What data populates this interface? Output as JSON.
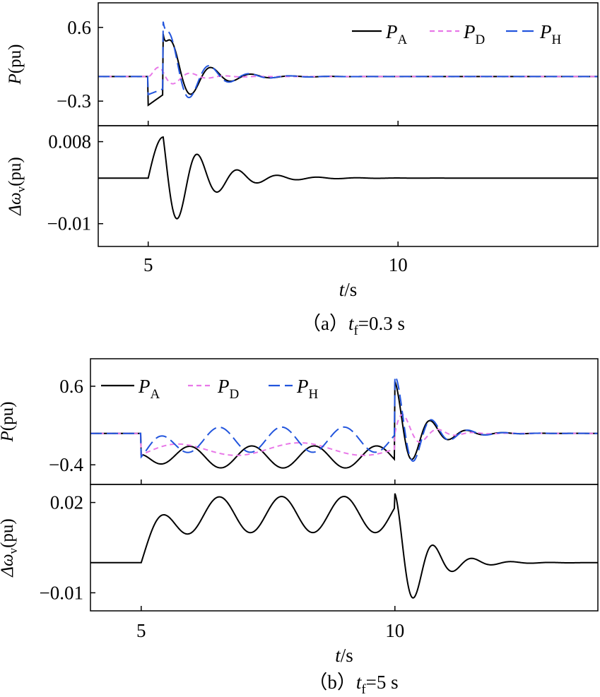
{
  "chart_data": [
    {
      "type": "line",
      "caption": {
        "prefix": "（a）",
        "var": "t",
        "sub": "f",
        "rest": "=0.3 s"
      },
      "xlabel": {
        "var": "t",
        "rest": "/s"
      },
      "xlim": [
        4,
        14
      ],
      "xticks": [
        5,
        10
      ],
      "panels": [
        {
          "ylabel": {
            "var": "P",
            "rest": "(pu)"
          },
          "ylim": [
            -0.6,
            0.9
          ],
          "yticks": [
            0.6,
            -0.3
          ],
          "legend": {
            "position": "top-right"
          },
          "series": [
            {
              "name": {
                "base": "P",
                "sub": "A"
              },
              "color": "#000000",
              "dash": "solid",
              "params": {
                "base": 0,
                "fault_start": 5.0,
                "fault_end": 5.3,
                "fault_from": -0.35,
                "fault_to": -0.22,
                "clear_jump": 0.74,
                "A": 0.55,
                "tau": 0.6,
                "freq": 1.25,
                "phase": 0.2
              }
            },
            {
              "name": {
                "base": "P",
                "sub": "D"
              },
              "color": "#e878e8",
              "dash": "short",
              "params": {
                "base": 0,
                "fault_start": 5.0,
                "fault_end": 5.3,
                "fault_from": 0,
                "fault_to": 0,
                "clear_jump": 0,
                "A": 0.27,
                "tau": 0.45,
                "freq": 1.45,
                "phase": 0.0
              }
            },
            {
              "name": {
                "base": "P",
                "sub": "H"
              },
              "color": "#2255dd",
              "dash": "long",
              "params": {
                "base": 0,
                "fault_start": 5.0,
                "fault_end": 5.3,
                "fault_from": -0.22,
                "fault_to": -0.15,
                "clear_jump": 0.82,
                "A": 0.62,
                "tau": 0.6,
                "freq": 1.25,
                "phase": 0.45
              }
            }
          ]
        },
        {
          "ylabel": {
            "var": "Δω",
            "sub": "v",
            "rest": "(pu)"
          },
          "ylim": [
            -0.015,
            0.0115
          ],
          "yticks": [
            0.008,
            -0.01
          ],
          "series": [
            {
              "name": null,
              "color": "#000000",
              "dash": "solid",
              "params": {
                "base": 0,
                "fault_start": 5.0,
                "fault_end": 5.3,
                "fault_from": 0,
                "fault_to": 0.009,
                "clear_jump": 0,
                "A": 0.0135,
                "tau": 0.75,
                "freq": 1.25,
                "phase": 0.55
              }
            }
          ]
        }
      ]
    },
    {
      "type": "line",
      "caption": {
        "prefix": "（b）",
        "var": "t",
        "sub": "f",
        "rest": "=5 s"
      },
      "xlabel": {
        "var": "t",
        "rest": "/s"
      },
      "xlim": [
        4,
        14
      ],
      "xticks": [
        5,
        10
      ],
      "panels": [
        {
          "ylabel": {
            "var": "P",
            "rest": "(pu)"
          },
          "ylim": [
            -0.65,
            0.95
          ],
          "yticks": [
            0.6,
            -0.4
          ],
          "legend": {
            "position": "top-left"
          },
          "series": [
            {
              "name": {
                "base": "P",
                "sub": "A"
              },
              "color": "#000000",
              "dash": "solid",
              "params": {
                "fault_start": 5.0,
                "fault_end": 10.0,
                "fault_osc": {
                  "start": -0.27,
                  "center": -0.3,
                  "A": 0.14,
                  "tau": 0.3,
                  "freq": 0.813,
                  "phase": 3.0
                },
                "post": {
                  "A": 0.66,
                  "tau": 0.5,
                  "freq": 1.4,
                  "phase": 1.57
                }
              }
            },
            {
              "name": {
                "base": "P",
                "sub": "D"
              },
              "color": "#e878e8",
              "dash": "short",
              "params": {
                "fault_start": 5.0,
                "fault_end": 10.0,
                "fault_osc": {
                  "start": -0.27,
                  "center": -0.2,
                  "A": 0.08,
                  "tau": 0.3,
                  "freq": 0.4,
                  "phase": 0.0
                },
                "post": {
                  "A": 0.34,
                  "tau": 0.45,
                  "freq": 1.45,
                  "phase": 0.0
                }
              }
            },
            {
              "name": {
                "base": "P",
                "sub": "H"
              },
              "color": "#2255dd",
              "dash": "long",
              "params": {
                "fault_start": 5.0,
                "fault_end": 10.0,
                "fault_osc": {
                  "start": -0.3,
                  "center": -0.08,
                  "A": 0.16,
                  "tau": 0.3,
                  "freq": 0.813,
                  "phase": 0.0
                },
                "post": {
                  "A": 0.74,
                  "tau": 0.5,
                  "freq": 1.4,
                  "phase": 1.35
                }
              }
            }
          ]
        },
        {
          "ylabel": {
            "var": "Δω",
            "sub": "v",
            "rest": "(pu)"
          },
          "ylim": [
            -0.016,
            0.026
          ],
          "yticks": [
            0.02,
            -0.01
          ],
          "series": [
            {
              "name": null,
              "color": "#000000",
              "dash": "solid",
              "params": {
                "fault_start": 5.0,
                "fault_end": 10.0,
                "fault_osc": {
                  "start": 0,
                  "center": 0.016,
                  "A": 0.006,
                  "tau": 0.3,
                  "freq": 0.813,
                  "phase": 0.0,
                  "ramp": true
                },
                "post": {
                  "A": 0.023,
                  "tau": 0.55,
                  "freq": 1.3,
                  "phase": 1.57
                }
              }
            }
          ]
        }
      ]
    }
  ]
}
